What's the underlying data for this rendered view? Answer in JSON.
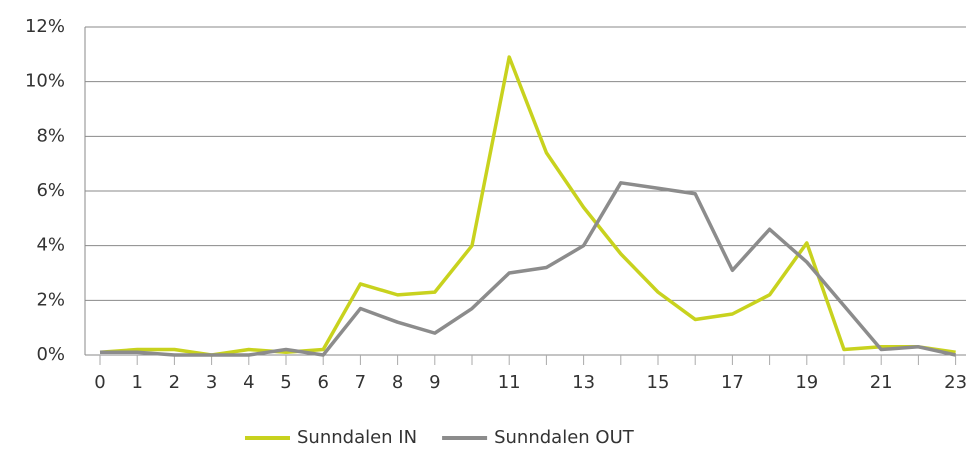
{
  "chart_data": {
    "type": "line",
    "categories": [
      "0",
      "1",
      "2",
      "3",
      "4",
      "5",
      "6",
      "7",
      "8",
      "9",
      null,
      "11",
      null,
      "13",
      null,
      "15",
      null,
      "17",
      null,
      "19",
      null,
      "21",
      null,
      "23"
    ],
    "series": [
      {
        "name": "Sunndalen IN",
        "color": "#c8d21e",
        "values": [
          0.1,
          0.2,
          0.2,
          0,
          0.2,
          0.1,
          0.2,
          2.6,
          2.2,
          2.3,
          4.0,
          10.9,
          7.4,
          5.4,
          3.7,
          2.3,
          1.3,
          1.5,
          2.2,
          4.1,
          0.2,
          0.3,
          0.3,
          0.1
        ]
      },
      {
        "name": "Sunndalen OUT",
        "color": "#8c8c8c",
        "values": [
          0.1,
          0.1,
          0,
          0,
          0,
          0.2,
          0,
          1.7,
          1.2,
          0.8,
          1.7,
          3.0,
          3.2,
          4.0,
          6.3,
          6.1,
          5.9,
          3.1,
          4.6,
          3.4,
          1.8,
          0.2,
          0.3,
          0
        ]
      }
    ],
    "ylim": [
      0,
      12
    ],
    "yticks": [
      {
        "value": 0,
        "label": "0%"
      },
      {
        "value": 2,
        "label": "2%"
      },
      {
        "value": 4,
        "label": "4%"
      },
      {
        "value": 6,
        "label": "6%"
      },
      {
        "value": 8,
        "label": "8%"
      },
      {
        "value": 10,
        "label": "10%"
      },
      {
        "value": 12,
        "label": "12%"
      }
    ],
    "grid": true,
    "legend": "bottom"
  }
}
